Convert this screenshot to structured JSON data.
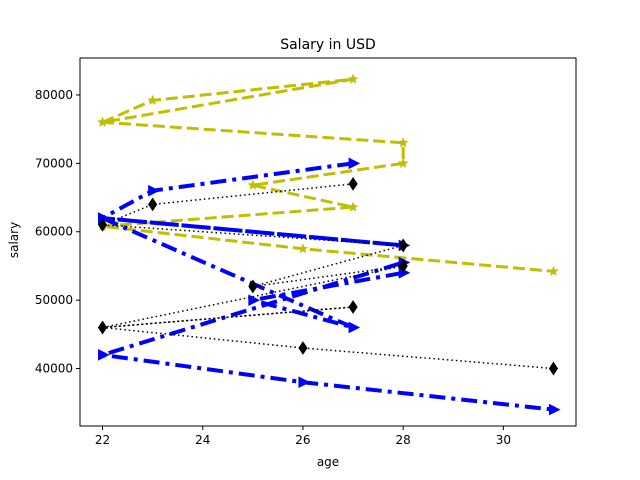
{
  "chart_data": {
    "type": "line",
    "title": "Salary in USD",
    "xlabel": "age",
    "ylabel": "salary",
    "xlim": [
      21.55,
      31.45
    ],
    "ylim": [
      31600,
      85400
    ],
    "xticks": [
      22,
      24,
      26,
      28,
      30
    ],
    "yticks": [
      40000,
      50000,
      60000,
      70000,
      80000
    ],
    "grid": false,
    "legend": "none",
    "series": [
      {
        "color": "#bfbf00",
        "marker": "star",
        "linestyle": "dashed",
        "linewidth": 3,
        "x": [
          22,
          23,
          27,
          22,
          28,
          28,
          25,
          27,
          22,
          26,
          31
        ],
        "y": [
          76000,
          79200,
          82300,
          76000,
          73000,
          70000,
          66800,
          63600,
          60800,
          57500,
          54200
        ]
      },
      {
        "color": "#0000ff",
        "marker": "triangle-right",
        "linestyle": "dashdot",
        "linewidth": 4,
        "x": [
          27,
          23,
          22,
          28,
          22,
          27,
          25,
          28,
          28,
          22,
          26,
          31
        ],
        "y": [
          70000,
          66000,
          62000,
          58000,
          62000,
          46000,
          50000,
          54000,
          55500,
          42000,
          38000,
          34000
        ]
      },
      {
        "color": "#000000",
        "marker": "diamond",
        "linestyle": "dotted",
        "linewidth": 1.5,
        "x": [
          27,
          23,
          22,
          28,
          25,
          28,
          22,
          27,
          22,
          26,
          31
        ],
        "y": [
          67000,
          64000,
          61000,
          58000,
          52000,
          55000,
          46000,
          49000,
          46000,
          43000,
          40000
        ]
      }
    ]
  }
}
